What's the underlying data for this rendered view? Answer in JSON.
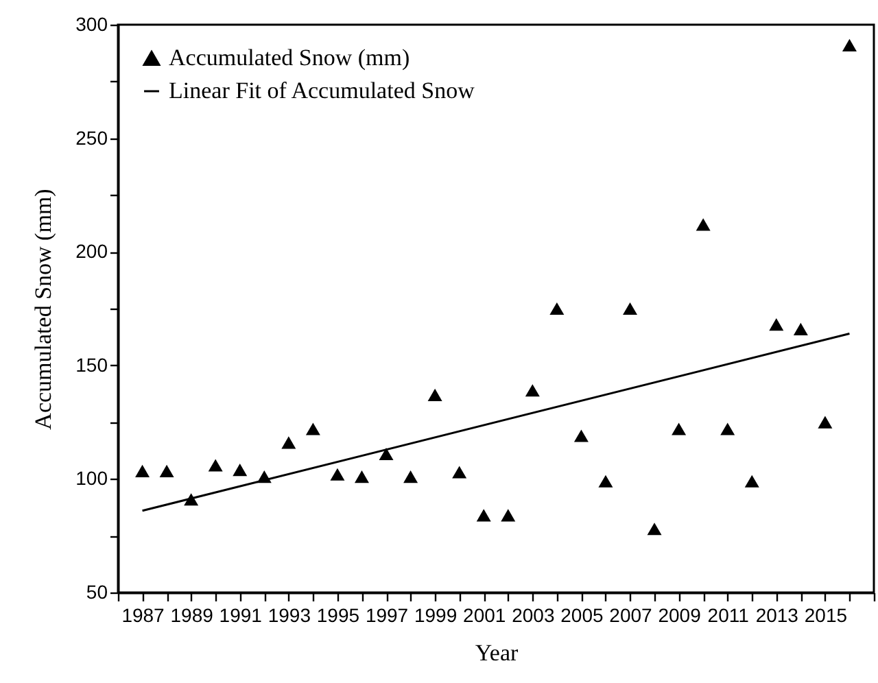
{
  "chart_data": {
    "type": "scatter",
    "xlabel": "Year",
    "ylabel": "Accumulated Snow (mm)",
    "x": [
      1987,
      1988,
      1989,
      1990,
      1991,
      1992,
      1993,
      1994,
      1995,
      1996,
      1997,
      1998,
      1999,
      2000,
      2001,
      2002,
      2003,
      2004,
      2005,
      2006,
      2007,
      2008,
      2009,
      2010,
      2011,
      2012,
      2013,
      2014,
      2015,
      2016
    ],
    "series": [
      {
        "name": "Accumulated Snow (mm)",
        "color": "#000000",
        "marker": "triangle",
        "values": [
          103.5,
          103.5,
          91,
          106,
          104,
          101,
          116,
          122,
          102,
          101,
          111,
          101,
          137,
          103,
          84,
          84,
          139,
          175,
          119,
          99,
          175,
          78,
          122,
          212,
          122,
          99,
          168,
          166,
          125,
          291
        ]
      },
      {
        "name": "Linear Fit of Accumulated Snow",
        "type": "line",
        "color": "#000000",
        "x": [
          1987,
          2016
        ],
        "values": [
          86,
          164
        ]
      }
    ],
    "xlim": [
      1986,
      2017
    ],
    "xticks": [
      {
        "value": 1986,
        "label": null
      },
      1987,
      {
        "value": 1988,
        "label": null
      },
      1989,
      {
        "value": 1990,
        "label": null
      },
      1991,
      {
        "value": 1992,
        "label": null
      },
      1993,
      {
        "value": 1994,
        "label": null
      },
      1995,
      {
        "value": 1996,
        "label": null
      },
      1997,
      {
        "value": 1998,
        "label": null
      },
      1999,
      {
        "value": 2000,
        "label": null
      },
      2001,
      {
        "value": 2002,
        "label": null
      },
      2003,
      {
        "value": 2004,
        "label": null
      },
      2005,
      {
        "value": 2006,
        "label": null
      },
      2007,
      {
        "value": 2008,
        "label": null
      },
      2009,
      {
        "value": 2010,
        "label": null
      },
      2011,
      {
        "value": 2012,
        "label": null
      },
      2013,
      {
        "value": 2014,
        "label": null
      },
      2015,
      {
        "value": 2016,
        "label": null
      },
      {
        "value": 2017,
        "label": null
      }
    ],
    "ylim": [
      50,
      300
    ],
    "yticks": [
      50,
      {
        "value": 75,
        "label": null
      },
      100,
      {
        "value": 125,
        "label": null
      },
      150,
      {
        "value": 175,
        "label": null
      },
      200,
      {
        "value": 225,
        "label": null
      },
      250,
      {
        "value": 275,
        "label": null
      },
      300
    ],
    "legend": "top left"
  }
}
